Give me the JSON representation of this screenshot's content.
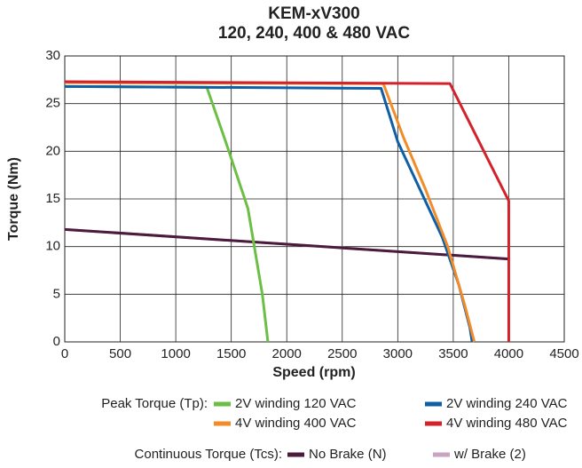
{
  "chart_data": {
    "type": "line",
    "title": "KEM-xV300",
    "subtitle": "120, 240, 400 & 480 VAC",
    "x_label": "Speed (rpm)",
    "y_label": "Torque (Nm)",
    "xlim": [
      0,
      4500
    ],
    "ylim": [
      0,
      30
    ],
    "xticks": [
      0,
      500,
      1000,
      1500,
      2000,
      2500,
      3000,
      3500,
      4000,
      4500
    ],
    "yticks": [
      0,
      5,
      10,
      15,
      20,
      25,
      30
    ],
    "grid": true,
    "legend_labels": [
      "Peak Torque (Tp):",
      "Continuous Torque (Tcs):"
    ],
    "series": [
      {
        "name": "2V winding 120 VAC",
        "color": "#6cbe45",
        "x": [
          0,
          1280,
          1450,
          1650,
          1780,
          1830
        ],
        "values": [
          26.8,
          26.7,
          21,
          14,
          5,
          0
        ]
      },
      {
        "name": "2V winding 240 VAC",
        "color": "#0f5fa6",
        "x": [
          0,
          2850,
          3000,
          3200,
          3400,
          3550,
          3650,
          3670
        ],
        "values": [
          26.8,
          26.6,
          21,
          16,
          11,
          6,
          1.5,
          0
        ]
      },
      {
        "name": "4V winding 400 VAC",
        "color": "#f28c28",
        "x": [
          0,
          2870,
          3050,
          3250,
          3450,
          3600,
          3690
        ],
        "values": [
          27.2,
          27.1,
          21.5,
          16,
          10,
          4,
          0
        ]
      },
      {
        "name": "4V winding 480 VAC",
        "color": "#d2232a",
        "x": [
          0,
          3470,
          4000,
          4000
        ],
        "values": [
          27.3,
          27.1,
          14.8,
          0
        ]
      },
      {
        "name": "No Brake (N)",
        "color": "#4b1a3c",
        "x": [
          0,
          4000
        ],
        "values": [
          11.8,
          8.7
        ]
      },
      {
        "name": "w/ Brake (2)",
        "color": "#c9a3c0",
        "x": [
          0,
          4000
        ],
        "values": [
          11.8,
          8.7
        ]
      }
    ]
  }
}
